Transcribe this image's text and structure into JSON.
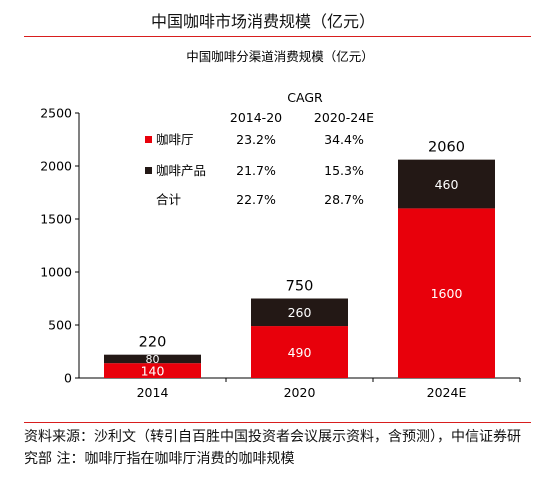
{
  "figure": {
    "title": "中国咖啡市场消费规模（亿元）",
    "source": "资料来源：沙利文（转引自百胜中国投资者会议展示资料，含预测），中信证券研究部 注：咖啡厅指在咖啡厅消费的咖啡规模"
  },
  "colors": {
    "cafe": "#e8000b",
    "product": "#231815",
    "rule": "#d81e1e"
  },
  "chart_data": {
    "type": "bar",
    "stacked": true,
    "title": "中国咖啡分渠道消费规模（亿元）",
    "categories": [
      "2014",
      "2020",
      "2024E"
    ],
    "series": [
      {
        "name": "咖啡厅",
        "values": [
          140,
          490,
          1600
        ]
      },
      {
        "name": "咖啡产品",
        "values": [
          80,
          260,
          460
        ]
      }
    ],
    "totals": [
      220,
      750,
      2060
    ],
    "ylim": [
      0,
      2500
    ],
    "yticks": [
      0,
      500,
      1000,
      1500,
      2000,
      2500
    ],
    "grid": false,
    "legend": "top-left",
    "cagr_table": {
      "header": "CAGR",
      "columns": [
        "2014-20",
        "2020-24E"
      ],
      "rows": [
        {
          "label": "咖啡厅",
          "values": [
            "23.2%",
            "34.4%"
          ]
        },
        {
          "label": "咖啡产品",
          "values": [
            "21.7%",
            "15.3%"
          ]
        },
        {
          "label": "合计",
          "values": [
            "22.7%",
            "28.7%"
          ]
        }
      ]
    }
  }
}
